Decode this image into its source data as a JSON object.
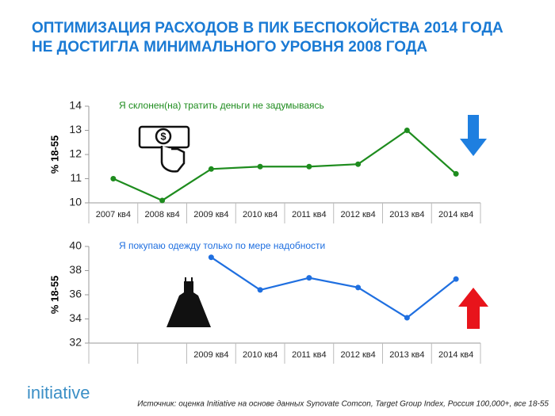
{
  "title": [
    "ОПТИМИЗАЦИЯ РАСХОДОВ В ПИК БЕСПОКОЙСТВА 2014 ГОДА",
    "НЕ ДОСТИГЛА МИНИМАЛЬНОГО УРОВНЯ 2008 ГОДА"
  ],
  "logo": "initiative",
  "source": "Источник: оценка Initiative на основе данных Synovate Comcon, Target Group Index, Россия 100,000+, все 18-55",
  "chart_data": [
    {
      "type": "line",
      "y_label": "% 18-55",
      "categories": [
        "2007 кв4",
        "2008 кв4",
        "2009 кв4",
        "2010 кв4",
        "2011 кв4",
        "2012 кв4",
        "2013 кв4",
        "2014 кв4"
      ],
      "series": [
        {
          "name": "Я склонен(на) тратить деньги не задумываясь",
          "color": "#1e8c1e",
          "values": [
            11.0,
            10.1,
            11.4,
            11.5,
            11.5,
            11.6,
            13.0,
            11.2
          ]
        }
      ],
      "ylim": [
        10,
        14
      ],
      "yticks": [
        10,
        11,
        12,
        13,
        14
      ],
      "grid": false
    },
    {
      "type": "line",
      "y_label": "% 18-55",
      "categories": [
        null,
        null,
        "2009 кв4",
        "2010 кв4",
        "2011 кв4",
        "2012 кв4",
        "2013 кв4",
        "2014 кв4"
      ],
      "series": [
        {
          "name": "Я покупаю  одежду только по мере надобности",
          "color": "#1f6fe0",
          "values": [
            null,
            null,
            39.1,
            36.4,
            37.4,
            36.6,
            34.1,
            37.3
          ]
        }
      ],
      "ylim": [
        32,
        40
      ],
      "yticks": [
        32,
        34,
        36,
        38,
        40
      ],
      "grid": false
    }
  ]
}
